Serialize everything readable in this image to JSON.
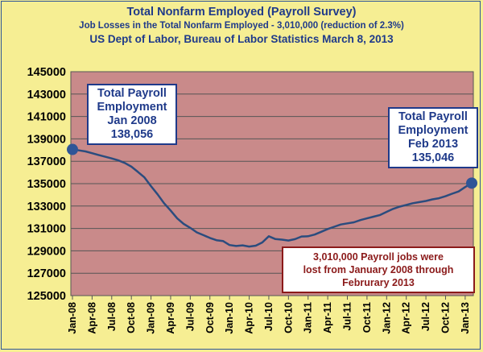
{
  "header": {
    "title": "Total Nonfarm Employed (Payroll Survey)",
    "subtitle": "Job Losses in the Total Nonfarm Employed - 3,010,000 (reduction of 2.3%)",
    "source": "US Dept of Labor, Bureau of Labor Statistics March 8, 2013"
  },
  "callouts": {
    "start_line1": "Total Payroll",
    "start_line2": "Employment",
    "start_line3": "Jan 2008",
    "start_value": "138,056",
    "end_line1": "Total Payroll",
    "end_line2": "Employment",
    "end_line3": "Feb 2013",
    "end_value": "135,046",
    "note_line1": "3,010,000 Payroll jobs were",
    "note_line2": "lost from January 2008 through",
    "note_line3": "Februrary 2013"
  },
  "colors": {
    "background": "#f6ee93",
    "plot_area": "#c98a8a",
    "line": "#2b4c7e",
    "blue_text": "#1f3a8a",
    "red_text": "#8b1a1a"
  },
  "chart_data": {
    "type": "line",
    "title": "Total Nonfarm Employed (Payroll Survey)",
    "ylabel": "",
    "xlabel": "",
    "ylim": [
      125000,
      145000
    ],
    "y_ticks": [
      "125000",
      "127000",
      "129000",
      "131000",
      "133000",
      "135000",
      "137000",
      "139000",
      "141000",
      "143000",
      "145000"
    ],
    "x_tick_labels": [
      "Jan-08",
      "Apr-08",
      "Jul-08",
      "Oct-08",
      "Jan-09",
      "Apr-09",
      "Jul-09",
      "Oct-09",
      "Jan-10",
      "Apr-10",
      "Jul-10",
      "Oct-10",
      "Jan-11",
      "Apr-11",
      "Jul-11",
      "Oct-11",
      "Jan-12",
      "Apr-12",
      "Jul-12",
      "Oct-12",
      "Jan-13"
    ],
    "grid": true,
    "x": [
      "Jan-08",
      "Feb-08",
      "Mar-08",
      "Apr-08",
      "May-08",
      "Jun-08",
      "Jul-08",
      "Aug-08",
      "Sep-08",
      "Oct-08",
      "Nov-08",
      "Dec-08",
      "Jan-09",
      "Feb-09",
      "Mar-09",
      "Apr-09",
      "May-09",
      "Jun-09",
      "Jul-09",
      "Aug-09",
      "Sep-09",
      "Oct-09",
      "Nov-09",
      "Dec-09",
      "Jan-10",
      "Feb-10",
      "Mar-10",
      "Apr-10",
      "May-10",
      "Jun-10",
      "Jul-10",
      "Aug-10",
      "Sep-10",
      "Oct-10",
      "Nov-10",
      "Dec-10",
      "Jan-11",
      "Feb-11",
      "Mar-11",
      "Apr-11",
      "May-11",
      "Jun-11",
      "Jul-11",
      "Aug-11",
      "Sep-11",
      "Oct-11",
      "Nov-11",
      "Dec-11",
      "Jan-12",
      "Feb-12",
      "Mar-12",
      "Apr-12",
      "May-12",
      "Jun-12",
      "Jul-12",
      "Aug-12",
      "Sep-12",
      "Oct-12",
      "Nov-12",
      "Dec-12",
      "Jan-13",
      "Feb-13"
    ],
    "series": [
      {
        "values": [
          138056,
          137970,
          137880,
          137720,
          137560,
          137400,
          137250,
          137080,
          136850,
          136520,
          136050,
          135560,
          134780,
          134050,
          133250,
          132600,
          131900,
          131400,
          131050,
          130650,
          130400,
          130150,
          129950,
          129880,
          129520,
          129430,
          129490,
          129380,
          129460,
          129750,
          130300,
          130050,
          130000,
          129920,
          130040,
          130280,
          130300,
          130450,
          130700,
          130950,
          131150,
          131350,
          131450,
          131550,
          131750,
          131900,
          132050,
          132200,
          132480,
          132750,
          132950,
          133100,
          133250,
          133350,
          133450,
          133600,
          133700,
          133880,
          134100,
          134300,
          134700,
          135046
        ]
      }
    ]
  }
}
